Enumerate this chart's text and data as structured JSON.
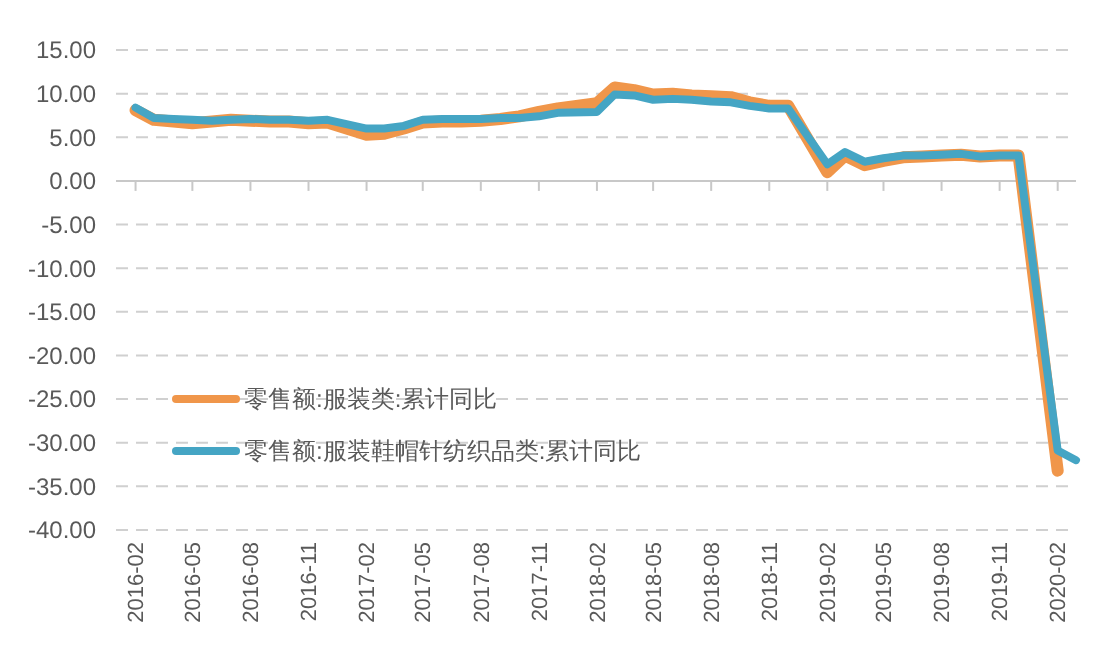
{
  "chart_data": {
    "type": "line",
    "x": [
      "2016-02",
      "2016-03",
      "2016-04",
      "2016-05",
      "2016-06",
      "2016-07",
      "2016-08",
      "2016-09",
      "2016-10",
      "2016-11",
      "2016-12",
      "2017-02",
      "2017-03",
      "2017-04",
      "2017-05",
      "2017-06",
      "2017-07",
      "2017-08",
      "2017-09",
      "2017-10",
      "2017-11",
      "2017-12",
      "2018-02",
      "2018-03",
      "2018-04",
      "2018-05",
      "2018-06",
      "2018-07",
      "2018-08",
      "2018-09",
      "2018-10",
      "2018-11",
      "2018-12",
      "2019-02",
      "2019-03",
      "2019-04",
      "2019-05",
      "2019-06",
      "2019-07",
      "2019-08",
      "2019-09",
      "2019-10",
      "2019-11",
      "2019-12",
      "2020-02",
      "2020-03"
    ],
    "series": [
      {
        "name": "零售额:服装类:累计同比",
        "color": "#f0964a",
        "values": [
          8.1,
          7.0,
          6.8,
          6.6,
          6.8,
          7.0,
          6.9,
          6.8,
          6.8,
          6.6,
          6.7,
          5.3,
          5.4,
          6.0,
          6.7,
          6.8,
          6.8,
          6.9,
          7.1,
          7.4,
          7.9,
          8.3,
          8.9,
          10.7,
          10.4,
          9.9,
          10.0,
          9.8,
          9.7,
          9.6,
          9.0,
          8.6,
          8.6,
          1.0,
          2.9,
          1.8,
          2.3,
          2.7,
          2.8,
          2.9,
          3.0,
          2.8,
          2.9,
          2.9,
          -33.2,
          null
        ]
      },
      {
        "name": "零售额:服装鞋帽针纺织品类:累计同比",
        "color": "#45a5c4",
        "values": [
          8.4,
          7.2,
          7.1,
          7.0,
          6.9,
          7.0,
          7.1,
          7.0,
          7.0,
          6.9,
          7.0,
          6.0,
          6.0,
          6.3,
          7.0,
          7.1,
          7.1,
          7.1,
          7.2,
          7.2,
          7.4,
          7.8,
          7.9,
          9.9,
          9.8,
          9.3,
          9.4,
          9.3,
          9.1,
          9.0,
          8.6,
          8.3,
          8.3,
          1.9,
          3.3,
          2.2,
          2.6,
          2.9,
          2.9,
          3.0,
          3.1,
          2.8,
          2.9,
          2.9,
          -30.9,
          -32.0
        ]
      }
    ],
    "xlim": [
      "2016-01",
      "2020-03"
    ],
    "xticks": [
      "2016-02",
      "2016-05",
      "2016-08",
      "2016-11",
      "2017-02",
      "2017-05",
      "2017-08",
      "2017-11",
      "2018-02",
      "2018-05",
      "2018-08",
      "2018-11",
      "2019-02",
      "2019-05",
      "2019-08",
      "2019-11",
      "2020-02"
    ],
    "ylim": [
      -40,
      15
    ],
    "yticks": [
      {
        "value": 15,
        "label": "15.00"
      },
      {
        "value": 10,
        "label": "10.00"
      },
      {
        "value": 5,
        "label": "5.00"
      },
      {
        "value": 0,
        "label": "0.00"
      },
      {
        "value": -5,
        "label": "-5.00"
      },
      {
        "value": -10,
        "label": "-10.00"
      },
      {
        "value": -15,
        "label": "-15.00"
      },
      {
        "value": -20,
        "label": "-20.00"
      },
      {
        "value": -25,
        "label": "-25.00"
      },
      {
        "value": -30,
        "label": "-30.00"
      },
      {
        "value": -35,
        "label": "-35.00"
      },
      {
        "value": -40,
        "label": "-40.00"
      }
    ],
    "grid": "y",
    "legend": "bottom left",
    "marker": "none",
    "line_style": "solid"
  }
}
